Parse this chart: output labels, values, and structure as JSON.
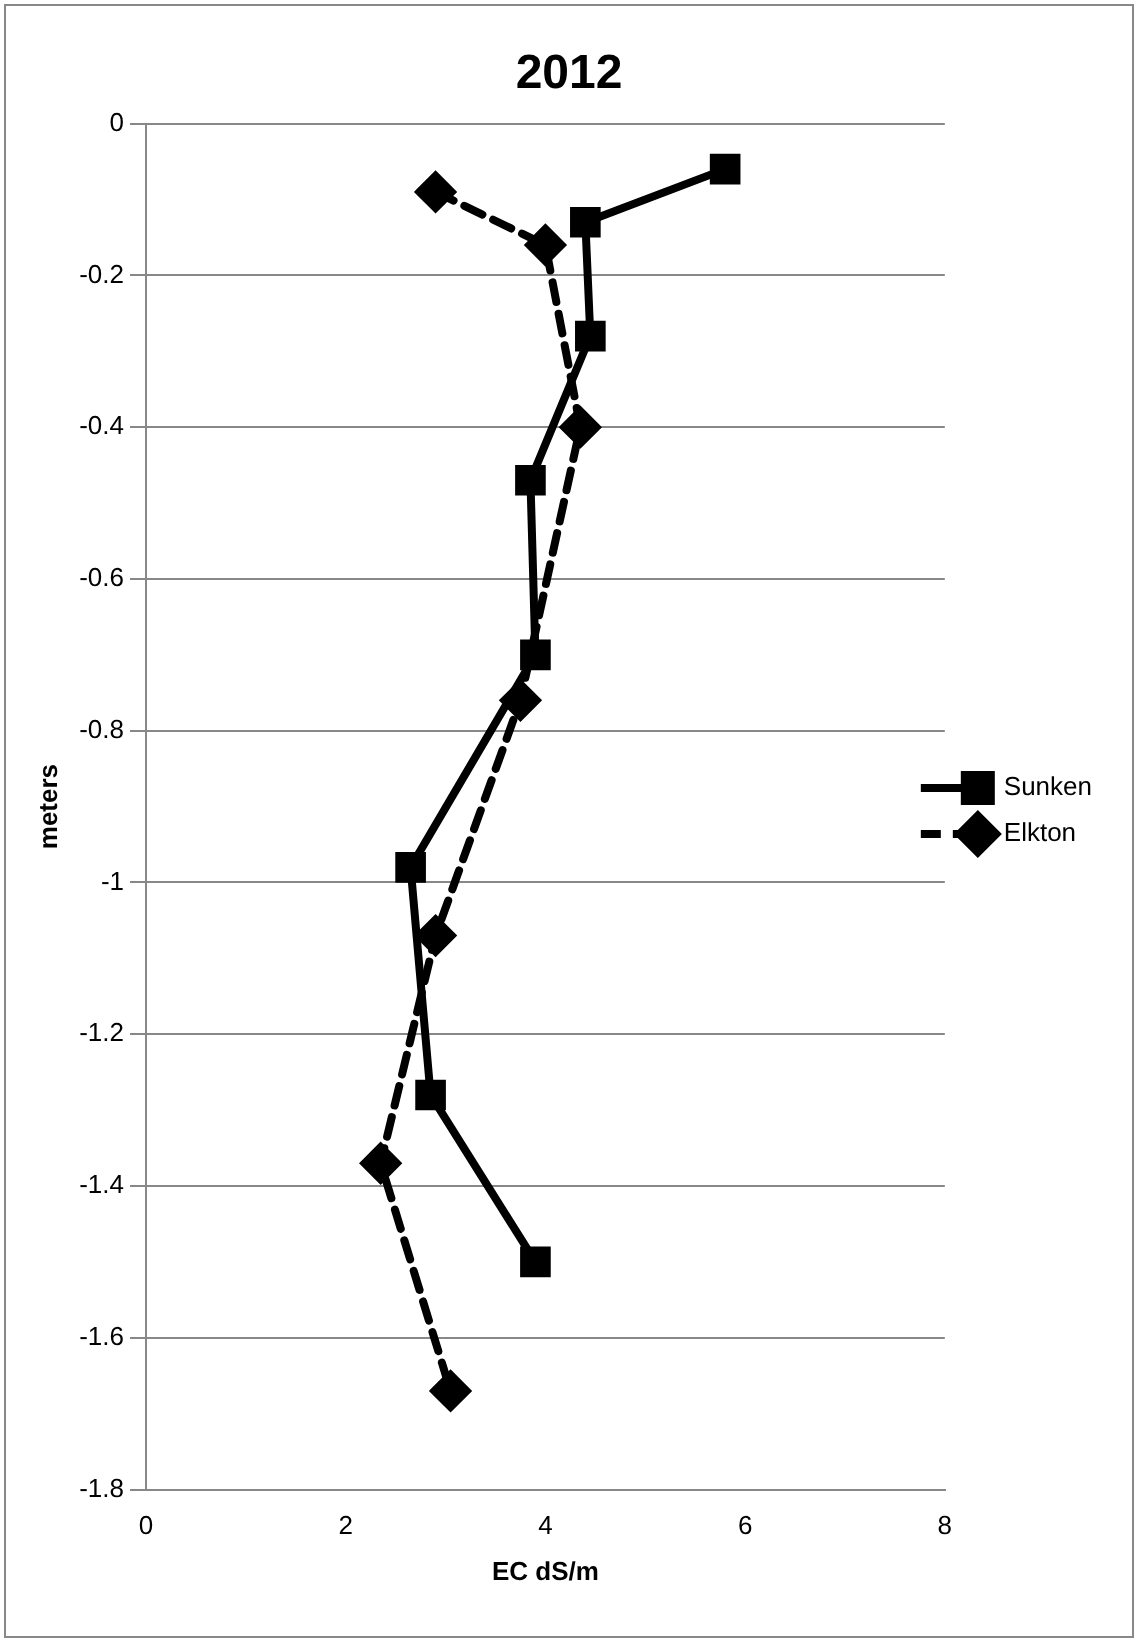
{
  "chart_data": {
    "type": "line",
    "title": "2012",
    "xlabel": "EC dS/m",
    "ylabel": "meters",
    "xlim": [
      0,
      8
    ],
    "xticks": [
      0,
      2,
      4,
      6,
      8
    ],
    "ylim": [
      -1.8,
      0
    ],
    "yticks": [
      -1.8,
      -1.6,
      -1.4,
      -1.2,
      -1,
      -0.8,
      -0.6,
      -0.4,
      -0.2,
      0
    ],
    "grid": "y",
    "legend": "right",
    "series": [
      {
        "name": "Sunken",
        "color": "#000000",
        "marker": "square",
        "line_style": "solid",
        "x": [
          5.8,
          4.4,
          4.45,
          3.85,
          3.9,
          2.65,
          2.85,
          3.9
        ],
        "values": [
          -0.06,
          -0.13,
          -0.28,
          -0.47,
          -0.7,
          -0.98,
          -1.28,
          -1.5
        ]
      },
      {
        "name": "Elkton",
        "color": "#000000",
        "marker": "diamond",
        "line_style": "dashed",
        "x": [
          2.9,
          4.0,
          4.35,
          3.75,
          2.9,
          2.35,
          3.05
        ],
        "values": [
          -0.09,
          -0.16,
          -0.4,
          -0.76,
          -1.07,
          -1.37,
          -1.67
        ]
      }
    ]
  }
}
